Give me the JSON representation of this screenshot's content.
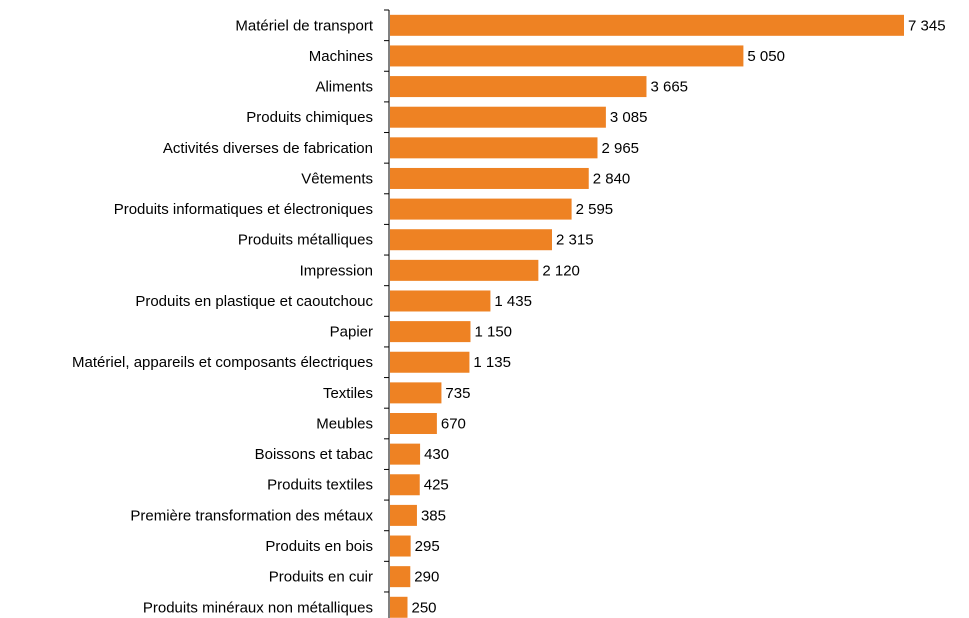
{
  "chart_data": {
    "type": "bar",
    "orientation": "horizontal",
    "color": "#ee8223",
    "categories": [
      "Matériel de transport",
      "Machines",
      "Aliments",
      "Produits chimiques",
      "Activités diverses de fabrication",
      "Vêtements",
      "Produits informatiques et électroniques",
      "Produits métalliques",
      "Impression",
      "Produits en plastique et caoutchouc",
      "Papier",
      "Matériel, appareils et composants électriques",
      "Textiles",
      "Meubles",
      "Boissons et tabac",
      "Produits textiles",
      "Première transformation des métaux",
      "Produits en bois",
      "Produits en cuir",
      "Produits minéraux non métalliques"
    ],
    "values": [
      7345,
      5050,
      3665,
      3085,
      2965,
      2840,
      2595,
      2315,
      2120,
      1435,
      1150,
      1135,
      735,
      670,
      430,
      425,
      385,
      295,
      290,
      250
    ],
    "value_labels": [
      "7 345",
      "5 050",
      "3 665",
      "3 085",
      "2 965",
      "2 840",
      "2 595",
      "2 315",
      "2 120",
      "1 435",
      "1 150",
      "1 135",
      "735",
      "670",
      "430",
      "425",
      "385",
      "295",
      "290",
      "250"
    ]
  }
}
